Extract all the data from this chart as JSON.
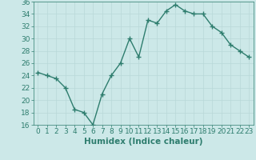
{
  "x": [
    0,
    1,
    2,
    3,
    4,
    5,
    6,
    7,
    8,
    9,
    10,
    11,
    12,
    13,
    14,
    15,
    16,
    17,
    18,
    19,
    20,
    21,
    22,
    23
  ],
  "y": [
    24.5,
    24.0,
    23.5,
    22.0,
    18.5,
    18.0,
    16.0,
    21.0,
    24.0,
    26.0,
    30.0,
    27.0,
    33.0,
    32.5,
    34.5,
    35.5,
    34.5,
    34.0,
    34.0,
    32.0,
    31.0,
    29.0,
    28.0,
    27.0
  ],
  "line_color": "#2e7d6e",
  "marker": "+",
  "marker_size": 4,
  "bg_color": "#cce8e8",
  "grid_color": "#b8d8d8",
  "xlabel": "Humidex (Indice chaleur)",
  "ylim": [
    16,
    36
  ],
  "xlim": [
    -0.5,
    23.5
  ],
  "yticks": [
    16,
    18,
    20,
    22,
    24,
    26,
    28,
    30,
    32,
    34,
    36
  ],
  "xticks": [
    0,
    1,
    2,
    3,
    4,
    5,
    6,
    7,
    8,
    9,
    10,
    11,
    12,
    13,
    14,
    15,
    16,
    17,
    18,
    19,
    20,
    21,
    22,
    23
  ],
  "tick_color": "#2e7d6e",
  "label_color": "#2e7d6e",
  "font_size": 6.5,
  "xlabel_fontsize": 7.5,
  "linewidth": 1.0,
  "marker_linewidth": 1.0
}
